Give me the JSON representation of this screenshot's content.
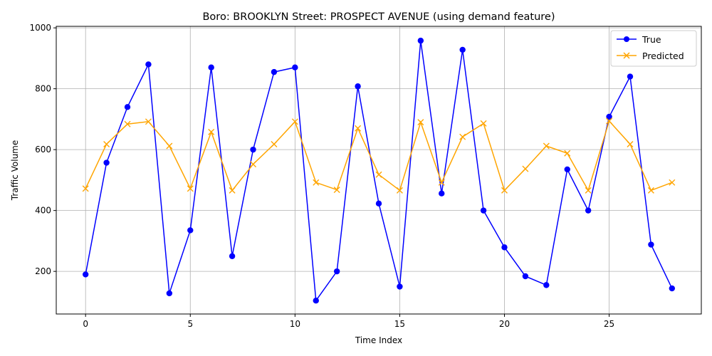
{
  "chart_data": {
    "type": "line",
    "title": "Boro: BROOKLYN Street: PROSPECT AVENUE (using demand feature)",
    "xlabel": "Time Index",
    "ylabel": "Traffic Volume",
    "xlim": [
      -1.4,
      29.4
    ],
    "ylim": [
      60,
      1005
    ],
    "xticks": [
      0,
      5,
      10,
      15,
      20,
      25
    ],
    "yticks": [
      200,
      400,
      600,
      800,
      1000
    ],
    "grid": true,
    "legend_position": "top-right",
    "x": [
      0,
      1,
      2,
      3,
      4,
      5,
      6,
      7,
      8,
      9,
      10,
      11,
      12,
      13,
      14,
      15,
      16,
      17,
      18,
      19,
      20,
      21,
      22,
      23,
      24,
      25,
      26,
      27,
      28
    ],
    "series": [
      {
        "name": "True",
        "color": "#0000ff",
        "marker": "circle",
        "values": [
          190,
          557,
          740,
          880,
          128,
          335,
          870,
          250,
          600,
          855,
          870,
          104,
          200,
          808,
          423,
          150,
          958,
          456,
          928,
          400,
          279,
          184,
          155,
          535,
          400,
          708,
          840,
          288,
          144
        ]
      },
      {
        "name": "Predicted",
        "color": "#ffa500",
        "marker": "x",
        "values": [
          472,
          618,
          684,
          692,
          612,
          472,
          658,
          466,
          552,
          618,
          692,
          492,
          468,
          670,
          518,
          466,
          690,
          492,
          642,
          686,
          466,
          537,
          612,
          588,
          466,
          694,
          618,
          466,
          492
        ]
      }
    ]
  }
}
